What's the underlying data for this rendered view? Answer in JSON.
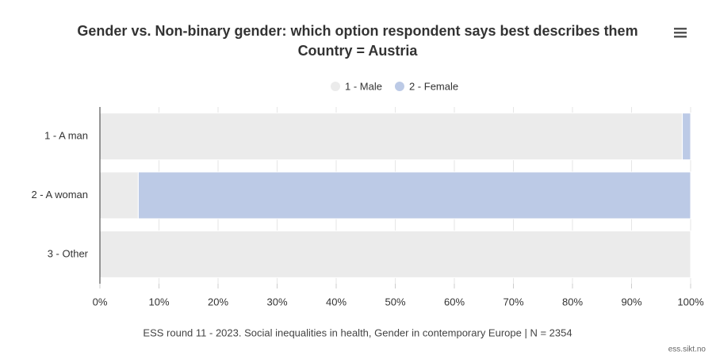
{
  "chart_data": {
    "type": "stacked-bar-horizontal-percent",
    "title": "Gender vs. Non-binary gender: which option respondent says best describes them",
    "subtitle": "Country = Austria",
    "caption": "ESS round 11 - 2023. Social inequalities in health, Gender in contemporary Europe | N = 2354",
    "credit": "ess.sikt.no",
    "categories": [
      "1 - A man",
      "2 - A woman",
      "3 - Other"
    ],
    "series": [
      {
        "name": "1 - Male",
        "color": "#ebebeb",
        "values": [
          98.6,
          6.5,
          100
        ]
      },
      {
        "name": "2 - Female",
        "color": "#bccae6",
        "values": [
          1.4,
          93.5,
          0
        ]
      }
    ],
    "xlim": [
      0,
      100
    ],
    "xticks": [
      {
        "value": 0,
        "label": "0%"
      },
      {
        "value": 10,
        "label": "10%"
      },
      {
        "value": 20,
        "label": "20%"
      },
      {
        "value": 30,
        "label": "30%"
      },
      {
        "value": 40,
        "label": "40%"
      },
      {
        "value": 50,
        "label": "50%"
      },
      {
        "value": 60,
        "label": "60%"
      },
      {
        "value": 70,
        "label": "70%"
      },
      {
        "value": 80,
        "label": "80%"
      },
      {
        "value": 90,
        "label": "90%"
      },
      {
        "value": 100,
        "label": "100%"
      }
    ],
    "grid": true,
    "legend": "top"
  }
}
